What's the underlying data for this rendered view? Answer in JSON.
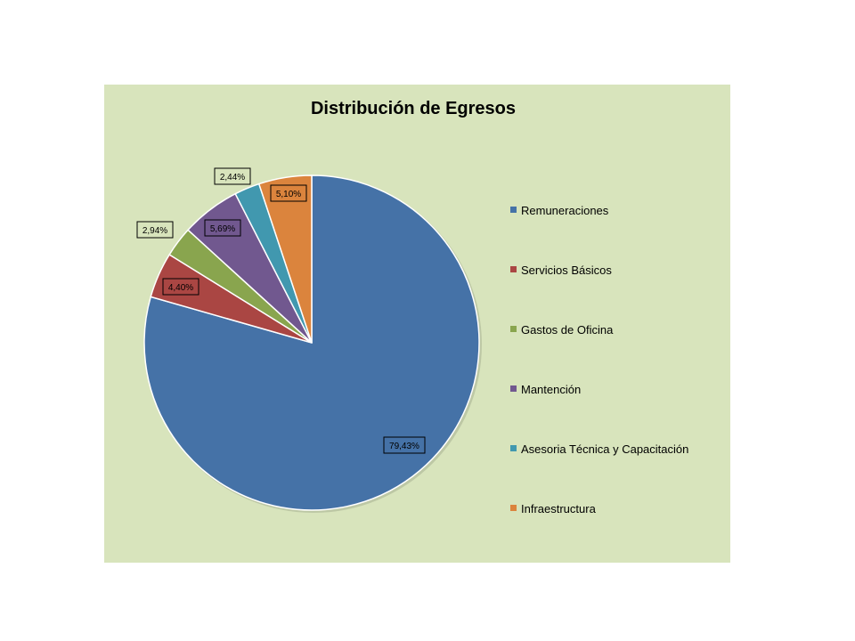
{
  "chart_data": {
    "type": "pie",
    "title": "Distribución de Egresos",
    "legend_position": "right",
    "slices": [
      {
        "label": "Remuneraciones",
        "value": 79.43,
        "value_label": "79,43%",
        "color": "#4572a7"
      },
      {
        "label": "Servicios Básicos",
        "value": 4.4,
        "value_label": "4,40%",
        "color": "#aa4643"
      },
      {
        "label": "Gastos de Oficina",
        "value": 2.94,
        "value_label": "2,94%",
        "color": "#89a54e"
      },
      {
        "label": "Mantención",
        "value": 5.69,
        "value_label": "5,69%",
        "color": "#71588f"
      },
      {
        "label": "Asesoria Técnica y Capacitación",
        "value": 2.44,
        "value_label": "2,44%",
        "color": "#4198af"
      },
      {
        "label": "Infraestructura",
        "value": 5.1,
        "value_label": "5,10%",
        "color": "#db843d"
      }
    ]
  }
}
